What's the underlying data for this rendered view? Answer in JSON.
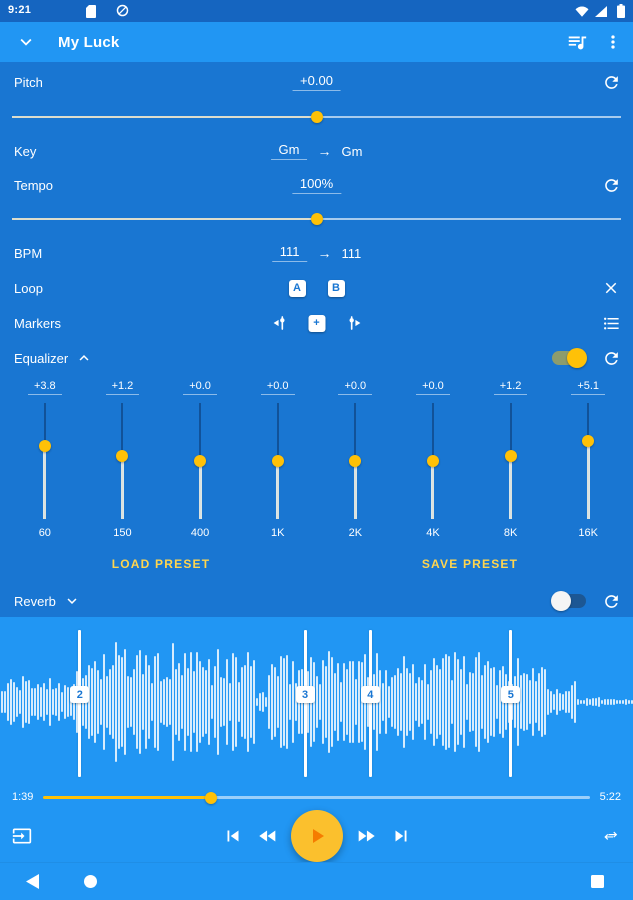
{
  "status_bar": {
    "time": "9:21"
  },
  "app_bar": {
    "title": "My Luck"
  },
  "controls": {
    "pitch": {
      "label": "Pitch",
      "value": "+0.00",
      "percent": 50
    },
    "key": {
      "label": "Key",
      "from": "Gm",
      "arrow": "→",
      "to": "Gm"
    },
    "tempo": {
      "label": "Tempo",
      "value": "100%",
      "percent": 50
    },
    "bpm": {
      "label": "BPM",
      "from": "111",
      "arrow": "→",
      "to": "111"
    },
    "loop": {
      "label": "Loop",
      "a_label": "A",
      "b_label": "B"
    },
    "markers": {
      "label": "Markers",
      "add_label": "+"
    },
    "equalizer": {
      "label": "Equalizer",
      "enabled": true,
      "gain_range_db": [
        -15,
        15
      ],
      "bands": [
        {
          "gain_label": "+3.8",
          "gain_db": 3.8,
          "freq": "60"
        },
        {
          "gain_label": "+1.2",
          "gain_db": 1.2,
          "freq": "150"
        },
        {
          "gain_label": "+0.0",
          "gain_db": 0.0,
          "freq": "400"
        },
        {
          "gain_label": "+0.0",
          "gain_db": 0.0,
          "freq": "1K"
        },
        {
          "gain_label": "+0.0",
          "gain_db": 0.0,
          "freq": "2K"
        },
        {
          "gain_label": "+0.0",
          "gain_db": 0.0,
          "freq": "4K"
        },
        {
          "gain_label": "+1.2",
          "gain_db": 1.2,
          "freq": "8K"
        },
        {
          "gain_label": "+5.1",
          "gain_db": 5.1,
          "freq": "16K"
        }
      ],
      "load_preset_label": "LOAD PRESET",
      "save_preset_label": "SAVE PRESET"
    },
    "reverb": {
      "label": "Reverb",
      "enabled": false
    }
  },
  "player": {
    "elapsed": "1:39",
    "duration": "5:22",
    "progress_percent": 30.7,
    "markers": [
      {
        "number": "2",
        "x_percent": 12.6
      },
      {
        "number": "3",
        "x_percent": 48.2
      },
      {
        "number": "4",
        "x_percent": 58.5
      },
      {
        "number": "5",
        "x_percent": 80.7
      }
    ]
  },
  "colors": {
    "status_bar": "#1565C0",
    "app_bar": "#2196F3",
    "panel": "#1976D2",
    "player_bg": "#2196F3",
    "accent_amber": "#FFC107",
    "play_button": "#FBC02D",
    "play_triangle": "#F57C00",
    "preset_text": "#FFD54F",
    "chip_text": "#1976D2"
  }
}
